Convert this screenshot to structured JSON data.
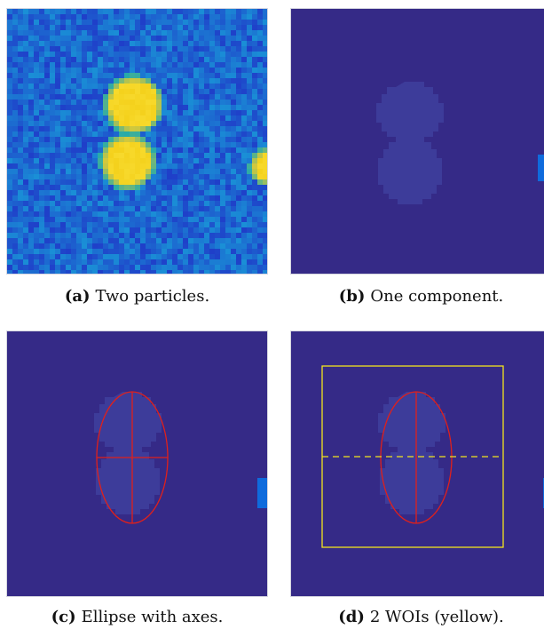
{
  "figure": {
    "panels": [
      {
        "label": "(a)",
        "caption": "Two particles."
      },
      {
        "label": "(b)",
        "caption": "One component."
      },
      {
        "label": "(c)",
        "caption": "Ellipse with axes."
      },
      {
        "label": "(d)",
        "caption": "2 WOIs (yellow)."
      }
    ],
    "colors": {
      "background": "#352a87",
      "component": "#3d3c9a",
      "edge_blob": "#0f6bdc",
      "ellipse": "#e0201b",
      "woi": "#f2e41e",
      "noise_low": "#1f3fc9",
      "noise_high": "#1a8fd6",
      "particle": "#f4d11c"
    }
  }
}
